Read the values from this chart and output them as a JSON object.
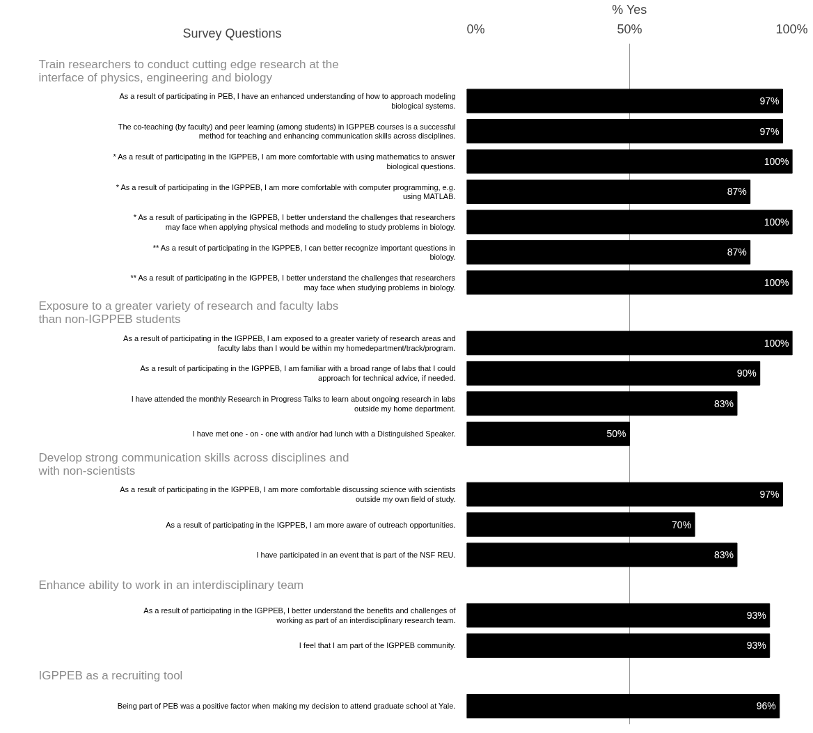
{
  "chart_data": {
    "type": "bar",
    "orientation": "horizontal",
    "xlabel": "% Yes",
    "ylabel": "Survey Questions",
    "annotations": [
      "Train researchers to conduct cutting edge research at the interface of physics, engineering and biology",
      "Exposure to a greater variety of research and faculty labs than non-IGPPEB students",
      "Develop strong communication skills across disciplines and with non-scientists",
      "Enhance ability to work in an interdisciplinary team",
      "IGPPEB as a recruiting tool"
    ],
    "categories": [
      null,
      "As a result of participating in PEB, I have an enhanced understanding of how to approach modeling biological systems.",
      "The co-teaching (by faculty) and peer learning (among students) in IGPPEB courses is a successful method for teaching and enhancing communication skills across disciplines.",
      "* As a result of participating in the IGPPEB, I am more comfortable with using mathematics to answer biological questions.",
      "* As a result of participating in the IGPPEB, I am more comfortable with computer programming, e.g. using MATLAB.",
      "* As a result of participating in the IGPPEB, I better understand the challenges that researchers may face when applying physical methods and modeling to study problems in biology.",
      "** As a result of participating in the IGPPEB, I can better recognize important questions in biology.",
      "** As a result of participating in the IGPPEB, I better understand the challenges that researchers may face when studying problems in biology.",
      null,
      "As a result of participating in the IGPPEB, I am exposed to a greater variety of research areas and faculty labs than I would be within my homedepartment/track/program.",
      "As a result of participating in the IGPPEB, I am familiar with a broad range of labs that I could approach for technical advice, if needed.",
      "I have attended the monthly Research in Progress Talks to learn about ongoing research in labs outside my home department.",
      "I have met one - on - one with and/or had lunch with a Distinguished Speaker.",
      null,
      "As a result of participating in the IGPPEB, I am more comfortable discussing science with scientists outside my own field of study.",
      "As a result of participating in the IGPPEB, I am more aware of outreach opportunities.",
      "I have participated in an event that is part of the NSF REU.",
      null,
      "As a result of participating in the IGPPEB, I better understand the benefits and challenges of working as part of an interdisciplinary research team.",
      "I feel that I am part of the IGPPEB community.",
      null,
      "Being part of PEB was a positive factor when making my decision to attend graduate school at Yale."
    ],
    "values": [
      null,
      97,
      97,
      100,
      87,
      100,
      87,
      100,
      null,
      100,
      90,
      83,
      50,
      null,
      97,
      70,
      83,
      null,
      93,
      93,
      null,
      96
    ],
    "value_labels": [
      null,
      "97%",
      "97%",
      "100%",
      "87%",
      "100%",
      "87%",
      "100%",
      null,
      "100%",
      "90%",
      "83%",
      "50%",
      null,
      "97%",
      "70%",
      "83%",
      null,
      "93%",
      "93%",
      null,
      "96%"
    ],
    "color": "#000000",
    "xlim": [
      0,
      100
    ],
    "xticks": [
      {
        "value": 0,
        "label": "0%"
      },
      {
        "value": 50,
        "label": "50%"
      },
      {
        "value": 100,
        "label": "100%"
      }
    ],
    "grid": "x"
  }
}
